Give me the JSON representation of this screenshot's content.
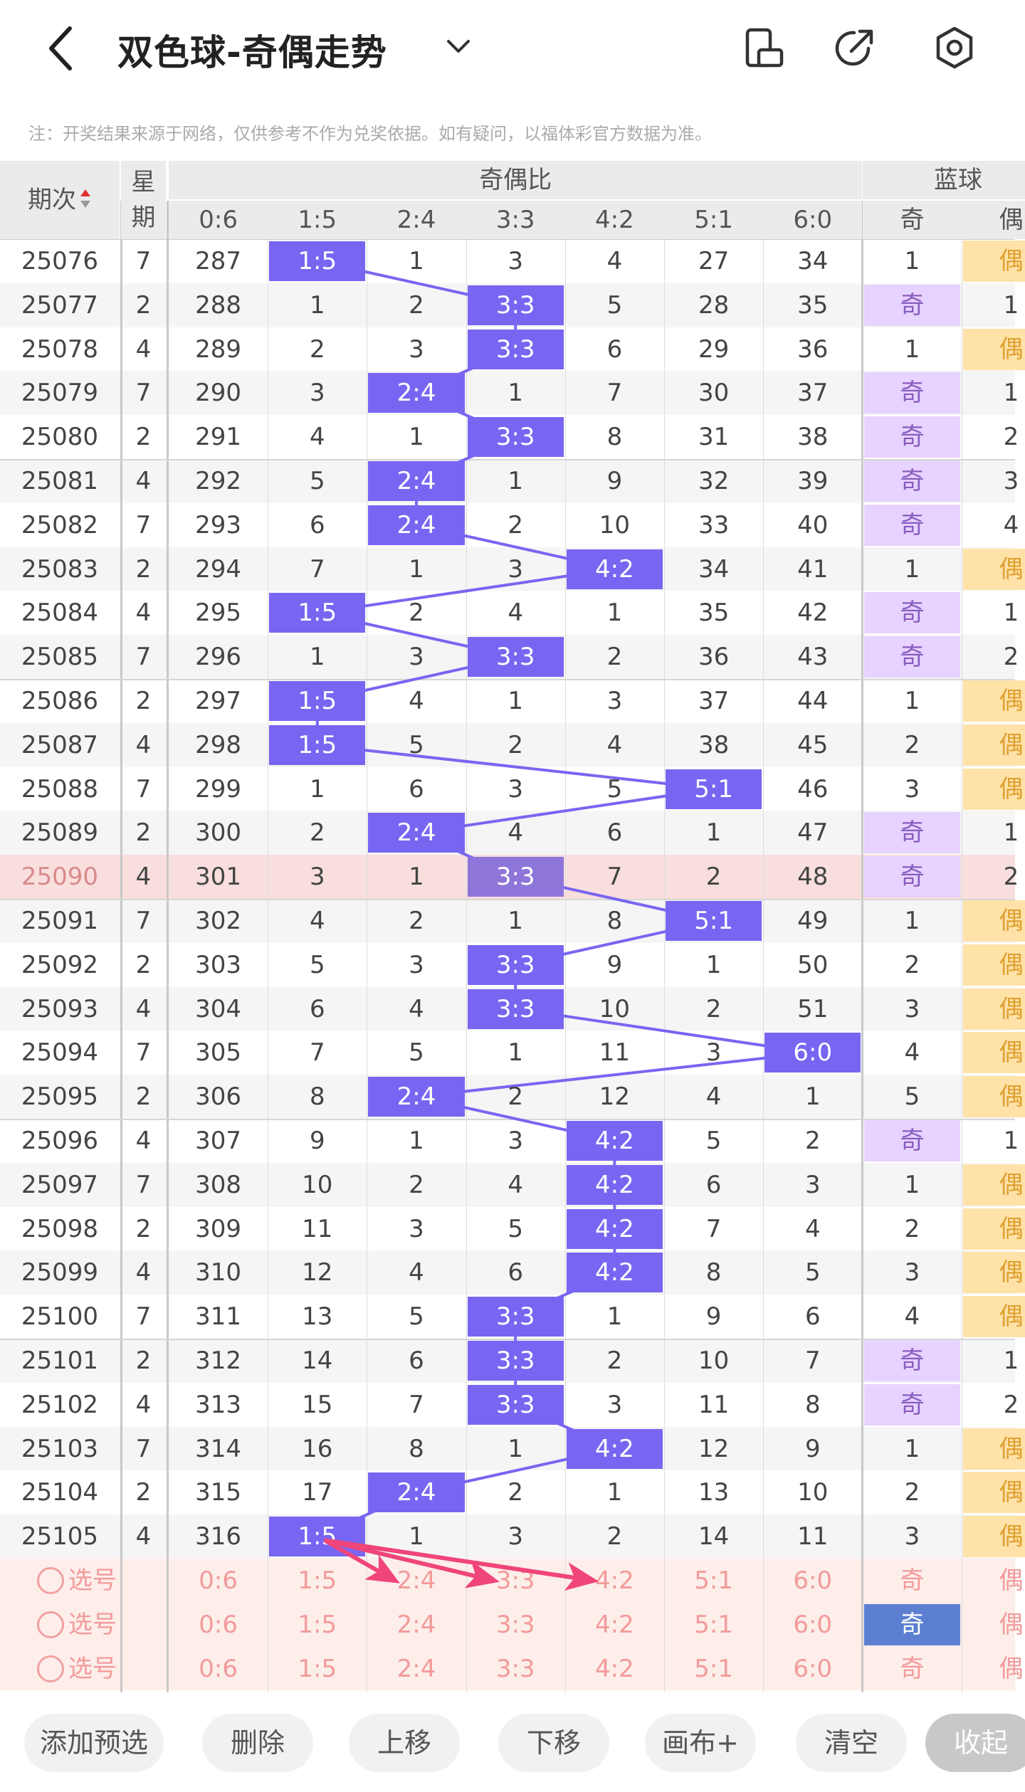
{
  "header": {
    "title": "双色球-奇偶走势",
    "icons": [
      "back-icon",
      "chevron-down-icon",
      "phone-rotate-icon",
      "share-icon",
      "settings-icon"
    ]
  },
  "notice": "注：开奖结果来源于网络，仅供参考不作为兑奖依据。如有疑问，以福体彩官方数据为准。",
  "table": {
    "col_issue_label": "期次",
    "col_week_label": "星期",
    "group_ratio_label": "奇偶比",
    "group_blue_label": "蓝球",
    "ratio_columns": [
      "0:6",
      "1:5",
      "2:4",
      "3:3",
      "4:2",
      "5:1",
      "6:0"
    ],
    "blue_columns": [
      "奇",
      "偶"
    ],
    "highlight_issue": "25090",
    "rows": [
      {
        "issue": "25076",
        "week": "7",
        "ratio": "1:5",
        "misses": [
          "287",
          "",
          "1",
          "3",
          "4",
          "27",
          "34"
        ],
        "blue": "偶",
        "blue_miss": "1"
      },
      {
        "issue": "25077",
        "week": "2",
        "ratio": "3:3",
        "misses": [
          "288",
          "1",
          "2",
          "",
          "5",
          "28",
          "35"
        ],
        "blue": "奇",
        "blue_miss": "1"
      },
      {
        "issue": "25078",
        "week": "4",
        "ratio": "3:3",
        "misses": [
          "289",
          "2",
          "3",
          "",
          "6",
          "29",
          "36"
        ],
        "blue": "偶",
        "blue_miss": "1"
      },
      {
        "issue": "25079",
        "week": "7",
        "ratio": "2:4",
        "misses": [
          "290",
          "3",
          "",
          "1",
          "7",
          "30",
          "37"
        ],
        "blue": "奇",
        "blue_miss": "1"
      },
      {
        "issue": "25080",
        "week": "2",
        "ratio": "3:3",
        "misses": [
          "291",
          "4",
          "1",
          "",
          "8",
          "31",
          "38"
        ],
        "blue": "奇",
        "blue_miss": "2"
      },
      {
        "issue": "25081",
        "week": "4",
        "ratio": "2:4",
        "misses": [
          "292",
          "5",
          "",
          "1",
          "9",
          "32",
          "39"
        ],
        "blue": "奇",
        "blue_miss": "3"
      },
      {
        "issue": "25082",
        "week": "7",
        "ratio": "2:4",
        "misses": [
          "293",
          "6",
          "",
          "2",
          "10",
          "33",
          "40"
        ],
        "blue": "奇",
        "blue_miss": "4"
      },
      {
        "issue": "25083",
        "week": "2",
        "ratio": "4:2",
        "misses": [
          "294",
          "7",
          "1",
          "3",
          "",
          "34",
          "41"
        ],
        "blue": "偶",
        "blue_miss": "1"
      },
      {
        "issue": "25084",
        "week": "4",
        "ratio": "1:5",
        "misses": [
          "295",
          "",
          "2",
          "4",
          "1",
          "35",
          "42"
        ],
        "blue": "奇",
        "blue_miss": "1"
      },
      {
        "issue": "25085",
        "week": "7",
        "ratio": "3:3",
        "misses": [
          "296",
          "1",
          "3",
          "",
          "2",
          "36",
          "43"
        ],
        "blue": "奇",
        "blue_miss": "2"
      },
      {
        "issue": "25086",
        "week": "2",
        "ratio": "1:5",
        "misses": [
          "297",
          "",
          "4",
          "1",
          "3",
          "37",
          "44"
        ],
        "blue": "偶",
        "blue_miss": "1"
      },
      {
        "issue": "25087",
        "week": "4",
        "ratio": "1:5",
        "misses": [
          "298",
          "",
          "5",
          "2",
          "4",
          "38",
          "45"
        ],
        "blue": "偶",
        "blue_miss": "2"
      },
      {
        "issue": "25088",
        "week": "7",
        "ratio": "5:1",
        "misses": [
          "299",
          "1",
          "6",
          "3",
          "5",
          "",
          "46"
        ],
        "blue": "偶",
        "blue_miss": "3"
      },
      {
        "issue": "25089",
        "week": "2",
        "ratio": "2:4",
        "misses": [
          "300",
          "2",
          "",
          "4",
          "6",
          "1",
          "47"
        ],
        "blue": "奇",
        "blue_miss": "1"
      },
      {
        "issue": "25090",
        "week": "4",
        "ratio": "3:3",
        "misses": [
          "301",
          "3",
          "1",
          "",
          "7",
          "2",
          "48"
        ],
        "blue": "奇",
        "blue_miss": "2"
      },
      {
        "issue": "25091",
        "week": "7",
        "ratio": "5:1",
        "misses": [
          "302",
          "4",
          "2",
          "1",
          "8",
          "",
          "49"
        ],
        "blue": "偶",
        "blue_miss": "1"
      },
      {
        "issue": "25092",
        "week": "2",
        "ratio": "3:3",
        "misses": [
          "303",
          "5",
          "3",
          "",
          "9",
          "1",
          "50"
        ],
        "blue": "偶",
        "blue_miss": "2"
      },
      {
        "issue": "25093",
        "week": "4",
        "ratio": "3:3",
        "misses": [
          "304",
          "6",
          "4",
          "",
          "10",
          "2",
          "51"
        ],
        "blue": "偶",
        "blue_miss": "3"
      },
      {
        "issue": "25094",
        "week": "7",
        "ratio": "6:0",
        "misses": [
          "305",
          "7",
          "5",
          "1",
          "11",
          "3",
          ""
        ],
        "blue": "偶",
        "blue_miss": "4"
      },
      {
        "issue": "25095",
        "week": "2",
        "ratio": "2:4",
        "misses": [
          "306",
          "8",
          "",
          "2",
          "12",
          "4",
          "1"
        ],
        "blue": "偶",
        "blue_miss": "5"
      },
      {
        "issue": "25096",
        "week": "4",
        "ratio": "4:2",
        "misses": [
          "307",
          "9",
          "1",
          "3",
          "",
          "5",
          "2"
        ],
        "blue": "奇",
        "blue_miss": "1"
      },
      {
        "issue": "25097",
        "week": "7",
        "ratio": "4:2",
        "misses": [
          "308",
          "10",
          "2",
          "4",
          "",
          "6",
          "3"
        ],
        "blue": "偶",
        "blue_miss": "1"
      },
      {
        "issue": "25098",
        "week": "2",
        "ratio": "4:2",
        "misses": [
          "309",
          "11",
          "3",
          "5",
          "",
          "7",
          "4"
        ],
        "blue": "偶",
        "blue_miss": "2"
      },
      {
        "issue": "25099",
        "week": "4",
        "ratio": "4:2",
        "misses": [
          "310",
          "12",
          "4",
          "6",
          "",
          "8",
          "5"
        ],
        "blue": "偶",
        "blue_miss": "3"
      },
      {
        "issue": "25100",
        "week": "7",
        "ratio": "3:3",
        "misses": [
          "311",
          "13",
          "5",
          "",
          "1",
          "9",
          "6"
        ],
        "blue": "偶",
        "blue_miss": "4"
      },
      {
        "issue": "25101",
        "week": "2",
        "ratio": "3:3",
        "misses": [
          "312",
          "14",
          "6",
          "",
          "2",
          "10",
          "7"
        ],
        "blue": "奇",
        "blue_miss": "1"
      },
      {
        "issue": "25102",
        "week": "4",
        "ratio": "3:3",
        "misses": [
          "313",
          "15",
          "7",
          "",
          "3",
          "11",
          "8"
        ],
        "blue": "奇",
        "blue_miss": "2"
      },
      {
        "issue": "25103",
        "week": "7",
        "ratio": "4:2",
        "misses": [
          "314",
          "16",
          "8",
          "1",
          "",
          "12",
          "9"
        ],
        "blue": "偶",
        "blue_miss": "1"
      },
      {
        "issue": "25104",
        "week": "2",
        "ratio": "2:4",
        "misses": [
          "315",
          "17",
          "",
          "2",
          "1",
          "13",
          "10"
        ],
        "blue": "偶",
        "blue_miss": "2"
      },
      {
        "issue": "25105",
        "week": "4",
        "ratio": "1:5",
        "misses": [
          "316",
          "",
          "1",
          "3",
          "2",
          "14",
          "11"
        ],
        "blue": "偶",
        "blue_miss": "3"
      }
    ],
    "select_label": "选号",
    "select_rows": [
      {
        "blue_selected": ""
      },
      {
        "blue_selected": "奇"
      },
      {
        "blue_selected": ""
      }
    ]
  },
  "toolbar": {
    "add": "添加预选",
    "delete": "删除",
    "up": "上移",
    "down": "下移",
    "canvas": "画布+",
    "clear": "清空",
    "collapse": "收起"
  },
  "colors": {
    "hit_chip": "#7866f2",
    "trend_line": "#7866f2",
    "odd_chip_bg": "#e6d3ff",
    "even_chip_bg": "#ffe2a8",
    "highlight_row": "#f9dede",
    "select_area": "#fdeeea",
    "annotation_arrow": "#f0457a"
  }
}
